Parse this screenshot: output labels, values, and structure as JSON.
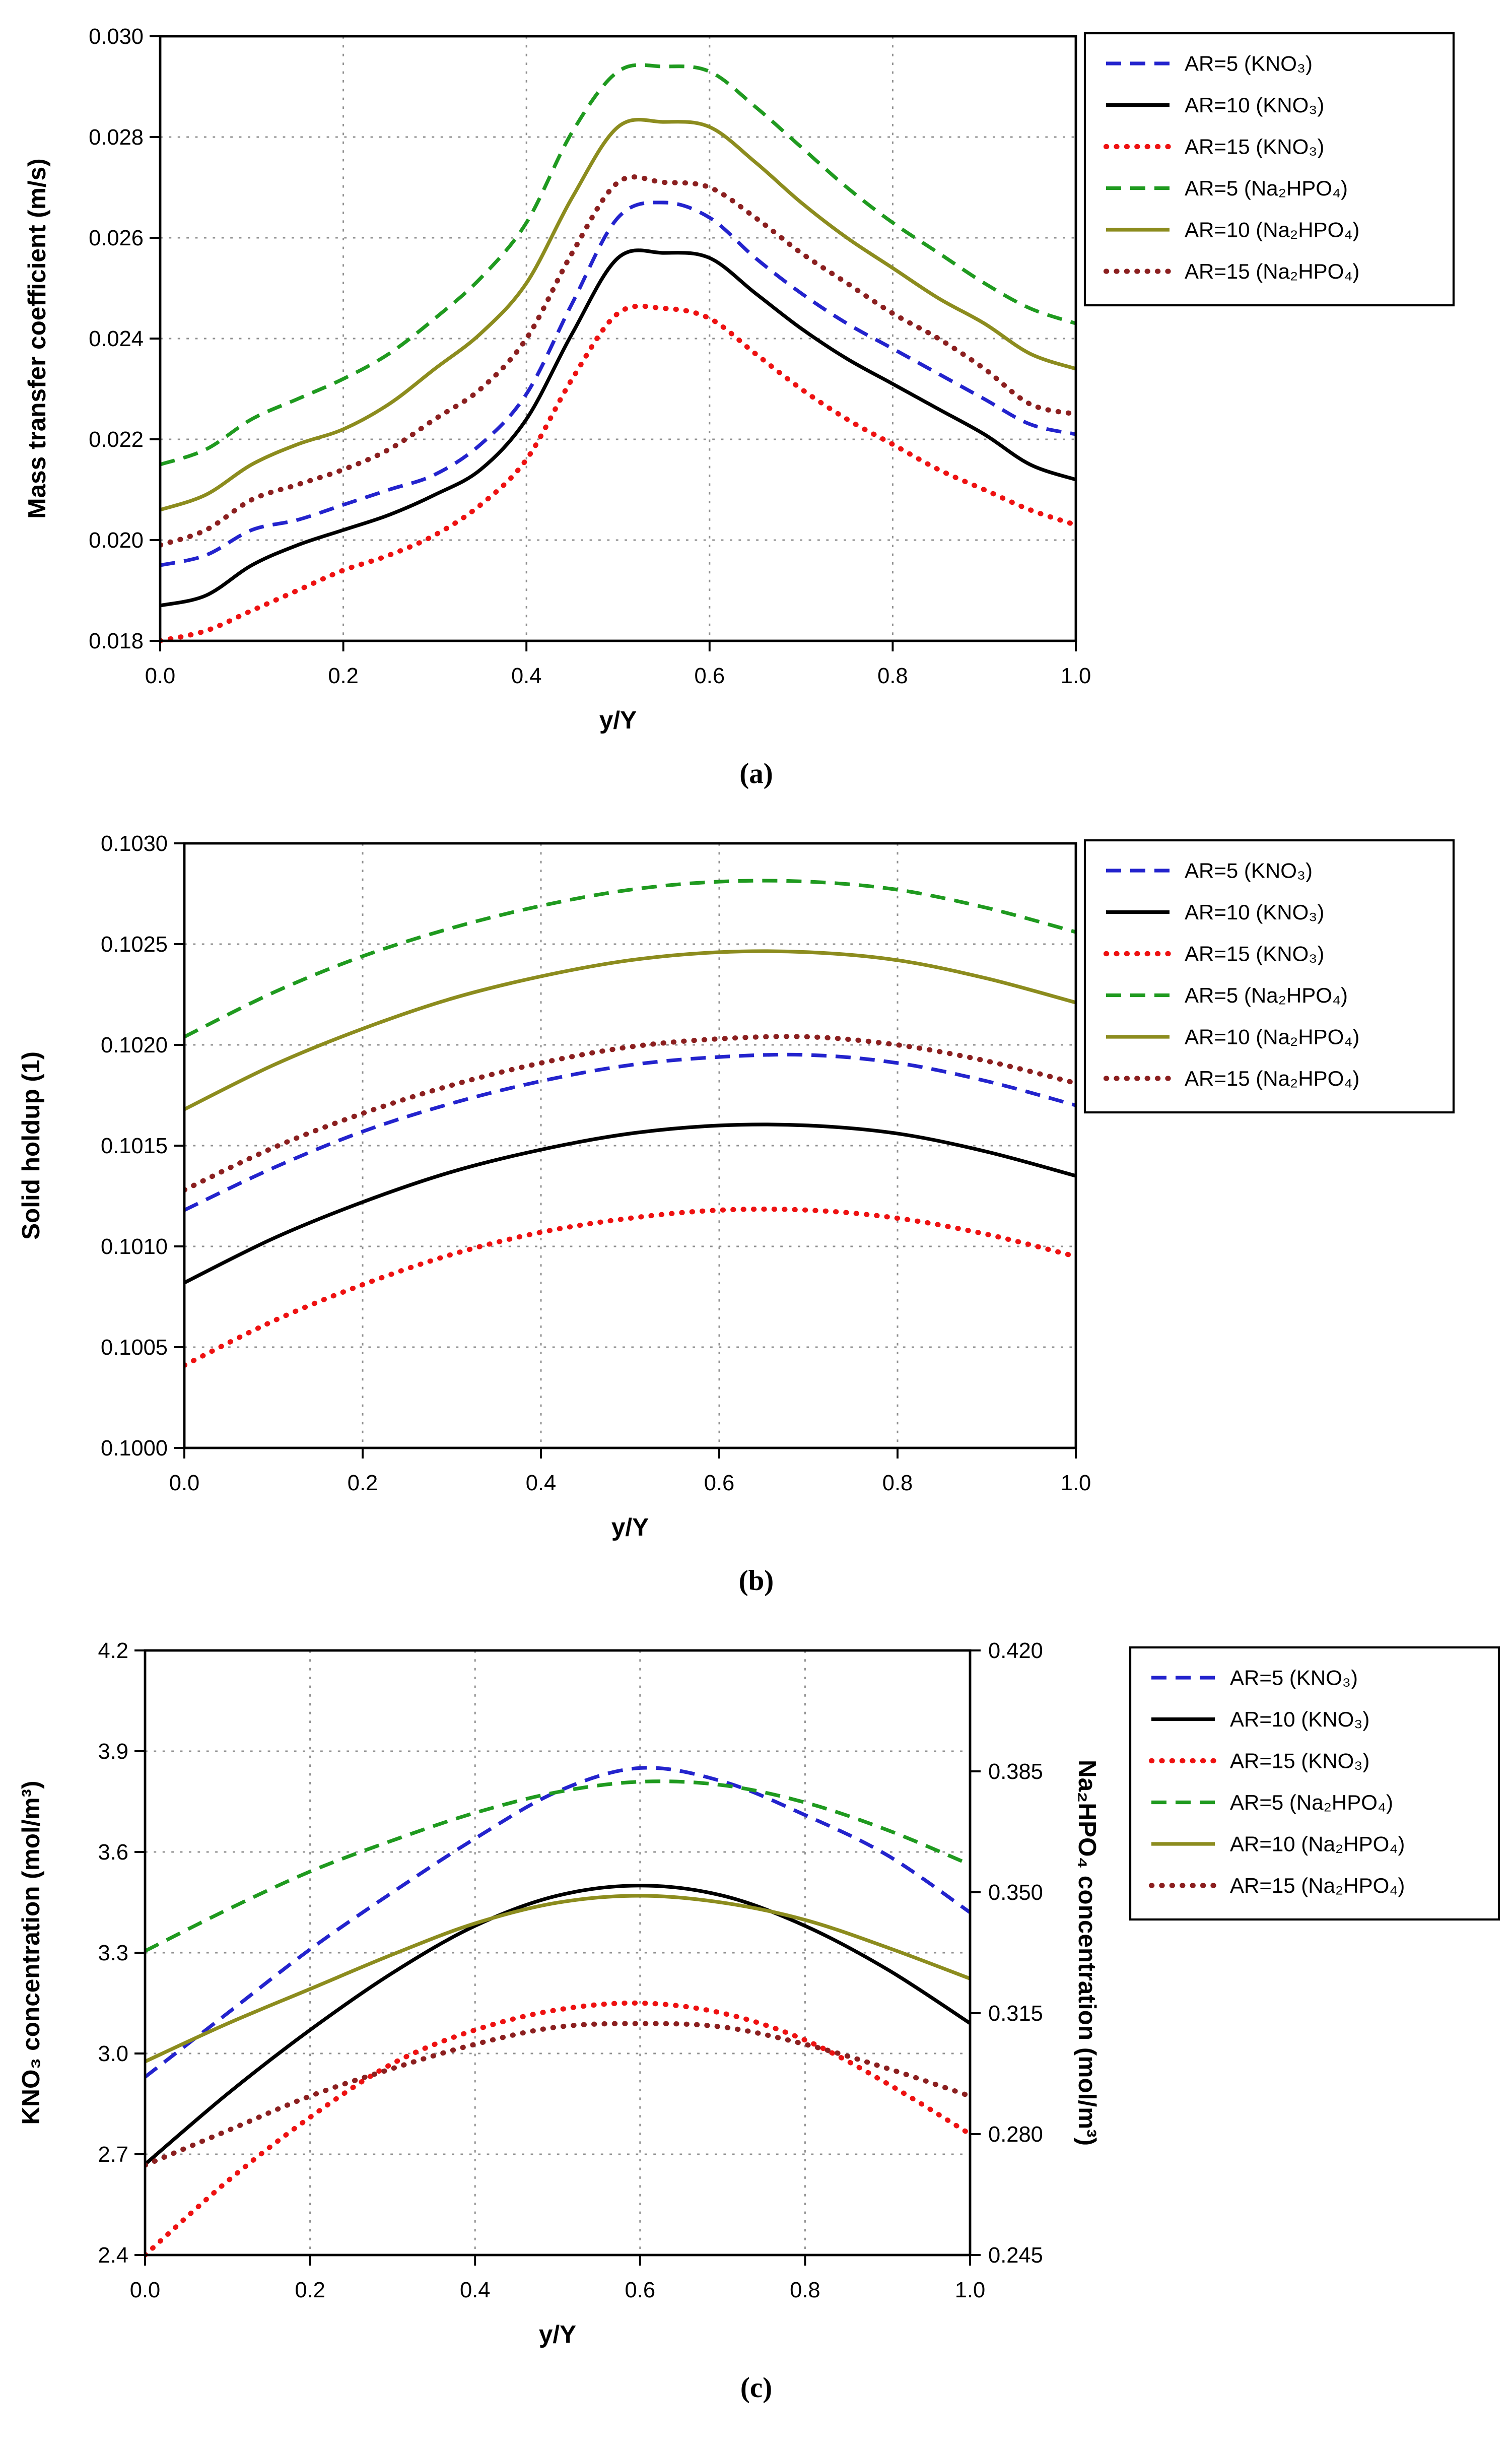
{
  "figure": {
    "background": "#ffffff",
    "grid_color": "#909090",
    "axis_color": "#000000"
  },
  "chart_data": [
    {
      "type": "line",
      "caption": "(a)",
      "xlabel": "y/Y",
      "ylabel": "Mass transfer coefficient (m/s)",
      "xlim": [
        0.0,
        1.0
      ],
      "ylim": [
        0.018,
        0.03
      ],
      "xticks": [
        0.0,
        0.2,
        0.4,
        0.6,
        0.8,
        1.0
      ],
      "xtick_labels": [
        "0.0",
        "0.2",
        "0.4",
        "0.6",
        "0.8",
        "1.0"
      ],
      "yticks": [
        0.018,
        0.02,
        0.022,
        0.024,
        0.026,
        0.028,
        0.03
      ],
      "ytick_labels": [
        "0.018",
        "0.020",
        "0.022",
        "0.024",
        "0.026",
        "0.028",
        "0.030"
      ],
      "grid": true,
      "legend_position": "outside-top-right",
      "x": [
        0,
        0.05,
        0.1,
        0.15,
        0.2,
        0.25,
        0.3,
        0.35,
        0.4,
        0.45,
        0.5,
        0.55,
        0.6,
        0.65,
        0.7,
        0.75,
        0.8,
        0.85,
        0.9,
        0.95,
        1.0
      ],
      "series": [
        {
          "label": "AR=5 (KNO₃)",
          "color": "#2323cd",
          "style": "dash",
          "axis": "left",
          "y": [
            0.0195,
            0.0197,
            0.0202,
            0.0204,
            0.0207,
            0.021,
            0.0213,
            0.0219,
            0.0229,
            0.0247,
            0.0264,
            0.0267,
            0.0264,
            0.0256,
            0.0249,
            0.0243,
            0.0238,
            0.0233,
            0.0228,
            0.0223,
            0.0221
          ]
        },
        {
          "label": "AR=10 (KNO₃)",
          "color": "#000000",
          "style": "solid",
          "axis": "left",
          "y": [
            0.0187,
            0.0189,
            0.0195,
            0.0199,
            0.0202,
            0.0205,
            0.0209,
            0.0214,
            0.0224,
            0.0241,
            0.0256,
            0.0257,
            0.0256,
            0.0249,
            0.0242,
            0.0236,
            0.0231,
            0.0226,
            0.0221,
            0.0215,
            0.0212
          ]
        },
        {
          "label": "AR=15 (KNO₃)",
          "color": "#ee1111",
          "style": "dot",
          "axis": "left",
          "y": [
            0.018,
            0.0182,
            0.0186,
            0.019,
            0.0194,
            0.0197,
            0.0201,
            0.0207,
            0.0216,
            0.0232,
            0.0245,
            0.0246,
            0.0244,
            0.0237,
            0.023,
            0.0224,
            0.0219,
            0.0214,
            0.021,
            0.0206,
            0.0203
          ]
        },
        {
          "label": "AR=5 (Na₂HPO₄)",
          "color": "#1f9a1f",
          "style": "dash",
          "axis": "left",
          "y": [
            0.0215,
            0.0218,
            0.0224,
            0.0228,
            0.0232,
            0.0237,
            0.0244,
            0.0252,
            0.0263,
            0.0281,
            0.0293,
            0.0294,
            0.0293,
            0.0286,
            0.0278,
            0.027,
            0.0263,
            0.0257,
            0.0251,
            0.0246,
            0.0243
          ]
        },
        {
          "label": "AR=10 (Na₂HPO₄)",
          "color": "#8c8c1e",
          "style": "solid",
          "axis": "left",
          "y": [
            0.0206,
            0.0209,
            0.0215,
            0.0219,
            0.0222,
            0.0227,
            0.0234,
            0.0241,
            0.0251,
            0.0268,
            0.0282,
            0.0283,
            0.0282,
            0.0275,
            0.0267,
            0.026,
            0.0254,
            0.0248,
            0.0243,
            0.0237,
            0.0234
          ]
        },
        {
          "label": "AR=15 (Na₂HPO₄)",
          "color": "#8b1f1f",
          "style": "dot",
          "axis": "left",
          "y": [
            0.0199,
            0.0202,
            0.0208,
            0.0211,
            0.0214,
            0.0218,
            0.0224,
            0.023,
            0.024,
            0.0257,
            0.0271,
            0.0271,
            0.027,
            0.0264,
            0.0257,
            0.0251,
            0.0245,
            0.024,
            0.0234,
            0.0227,
            0.0225
          ]
        }
      ]
    },
    {
      "type": "line",
      "caption": "(b)",
      "xlabel": "y/Y",
      "ylabel": "Solid holdup (1)",
      "xlim": [
        0.0,
        1.0
      ],
      "ylim": [
        0.1,
        0.103
      ],
      "xticks": [
        0.0,
        0.2,
        0.4,
        0.6,
        0.8,
        1.0
      ],
      "xtick_labels": [
        "0.0",
        "0.2",
        "0.4",
        "0.6",
        "0.8",
        "1.0"
      ],
      "yticks": [
        0.1,
        0.1005,
        0.101,
        0.1015,
        0.102,
        0.1025,
        0.103
      ],
      "ytick_labels": [
        "0.1000",
        "0.1005",
        "0.1010",
        "0.1015",
        "0.1020",
        "0.1025",
        "0.1030"
      ],
      "grid": true,
      "legend_position": "outside-top-right",
      "x": [
        0,
        0.1,
        0.2,
        0.3,
        0.4,
        0.5,
        0.6,
        0.7,
        0.8,
        0.9,
        1.0
      ],
      "series": [
        {
          "label": "AR=5 (KNO₃)",
          "color": "#2323cd",
          "style": "dash",
          "axis": "left",
          "y": [
            0.10118,
            0.10139,
            0.10157,
            0.10171,
            0.10182,
            0.1019,
            0.10194,
            0.10195,
            0.10191,
            0.10182,
            0.1017
          ]
        },
        {
          "label": "AR=10 (KNO₃)",
          "color": "#000000",
          "style": "solid",
          "axis": "left",
          "y": [
            0.10082,
            0.10104,
            0.10122,
            0.10137,
            0.10148,
            0.10156,
            0.1016,
            0.1016,
            0.10156,
            0.10147,
            0.10135
          ]
        },
        {
          "label": "AR=15 (KNO₃)",
          "color": "#ee1111",
          "style": "dot",
          "axis": "left",
          "y": [
            0.10041,
            0.10063,
            0.10081,
            0.10096,
            0.10107,
            0.10114,
            0.10118,
            0.10118,
            0.10114,
            0.10106,
            0.10095
          ]
        },
        {
          "label": "AR=5 (Na₂HPO₄)",
          "color": "#1f9a1f",
          "style": "dash",
          "axis": "left",
          "y": [
            0.10204,
            0.10226,
            0.10244,
            0.10258,
            0.10269,
            0.10277,
            0.10281,
            0.10281,
            0.10277,
            0.10268,
            0.10256
          ]
        },
        {
          "label": "AR=10 (Na₂HPO₄)",
          "color": "#8c8c1e",
          "style": "solid",
          "axis": "left",
          "y": [
            0.10168,
            0.1019,
            0.10208,
            0.10223,
            0.10234,
            0.10242,
            0.10246,
            0.10246,
            0.10242,
            0.10233,
            0.10221
          ]
        },
        {
          "label": "AR=15 (Na₂HPO₄)",
          "color": "#8b1f1f",
          "style": "dot",
          "axis": "left",
          "y": [
            0.10128,
            0.10149,
            0.10166,
            0.1018,
            0.10191,
            0.10199,
            0.10203,
            0.10204,
            0.102,
            0.10192,
            0.10181
          ]
        }
      ]
    },
    {
      "type": "line",
      "caption": "(c)",
      "xlabel": "y/Y",
      "ylabel": "KNO₃ concentration (mol/m³)",
      "y2label": "Na₂HPO₄ concentration (mol/m³)",
      "xlim": [
        0.0,
        1.0
      ],
      "ylim": [
        2.4,
        4.2
      ],
      "y2lim": [
        0.245,
        0.42
      ],
      "xticks": [
        0.0,
        0.2,
        0.4,
        0.6,
        0.8,
        1.0
      ],
      "xtick_labels": [
        "0.0",
        "0.2",
        "0.4",
        "0.6",
        "0.8",
        "1.0"
      ],
      "yticks": [
        2.4,
        2.7,
        3.0,
        3.3,
        3.6,
        3.9,
        4.2
      ],
      "ytick_labels": [
        "2.4",
        "2.7",
        "3.0",
        "3.3",
        "3.6",
        "3.9",
        "4.2"
      ],
      "y2ticks": [
        0.245,
        0.28,
        0.315,
        0.35,
        0.385,
        0.42
      ],
      "y2tick_labels": [
        "0.245",
        "0.280",
        "0.315",
        "0.350",
        "0.385",
        "0.420"
      ],
      "grid": true,
      "legend_position": "outside-top-right",
      "x": [
        0,
        0.1,
        0.2,
        0.3,
        0.4,
        0.5,
        0.6,
        0.7,
        0.8,
        0.9,
        1.0
      ],
      "series": [
        {
          "label": "AR=5 (KNO₃)",
          "color": "#2323cd",
          "style": "dash",
          "axis": "left",
          "y": [
            2.93,
            3.12,
            3.31,
            3.48,
            3.64,
            3.78,
            3.85,
            3.81,
            3.71,
            3.59,
            3.42
          ]
        },
        {
          "label": "AR=10 (KNO₃)",
          "color": "#000000",
          "style": "solid",
          "axis": "left",
          "y": [
            2.67,
            2.88,
            3.07,
            3.24,
            3.38,
            3.47,
            3.5,
            3.47,
            3.38,
            3.25,
            3.09
          ]
        },
        {
          "label": "AR=15 (KNO₃)",
          "color": "#ee1111",
          "style": "dot",
          "axis": "left",
          "y": [
            2.4,
            2.62,
            2.81,
            2.97,
            3.07,
            3.13,
            3.15,
            3.12,
            3.04,
            2.91,
            2.76
          ]
        },
        {
          "label": "AR=5 (Na₂HPO₄)",
          "color": "#1f9a1f",
          "style": "dash",
          "axis": "right",
          "y": [
            0.333,
            0.345,
            0.356,
            0.365,
            0.373,
            0.379,
            0.382,
            0.381,
            0.376,
            0.368,
            0.358
          ]
        },
        {
          "label": "AR=10 (Na₂HPO₄)",
          "color": "#8c8c1e",
          "style": "solid",
          "axis": "right",
          "y": [
            0.301,
            0.312,
            0.322,
            0.332,
            0.341,
            0.347,
            0.349,
            0.347,
            0.342,
            0.334,
            0.325
          ]
        },
        {
          "label": "AR=15 (Na₂HPO₄)",
          "color": "#8b1f1f",
          "style": "dot",
          "axis": "right",
          "y": [
            0.271,
            0.281,
            0.291,
            0.299,
            0.306,
            0.311,
            0.312,
            0.311,
            0.306,
            0.299,
            0.291
          ]
        }
      ]
    }
  ]
}
